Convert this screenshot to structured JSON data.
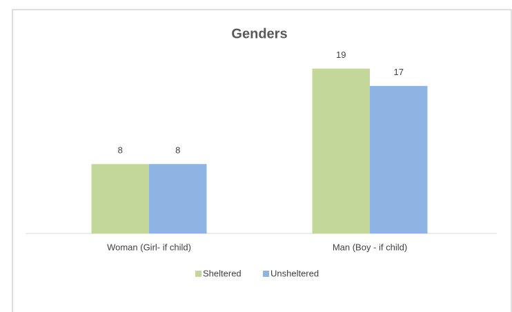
{
  "chart_data": {
    "type": "bar",
    "title": "Genders",
    "categories": [
      "Woman (Girl- if child)",
      "Man (Boy -  if child)"
    ],
    "series": [
      {
        "name": "Sheltered",
        "color": "#c4d79b",
        "values": [
          8,
          19
        ]
      },
      {
        "name": "Unsheltered",
        "color": "#8db4e2",
        "values": [
          8,
          17
        ]
      }
    ],
    "ylim": [
      0,
      20
    ],
    "legend": "bottom"
  }
}
